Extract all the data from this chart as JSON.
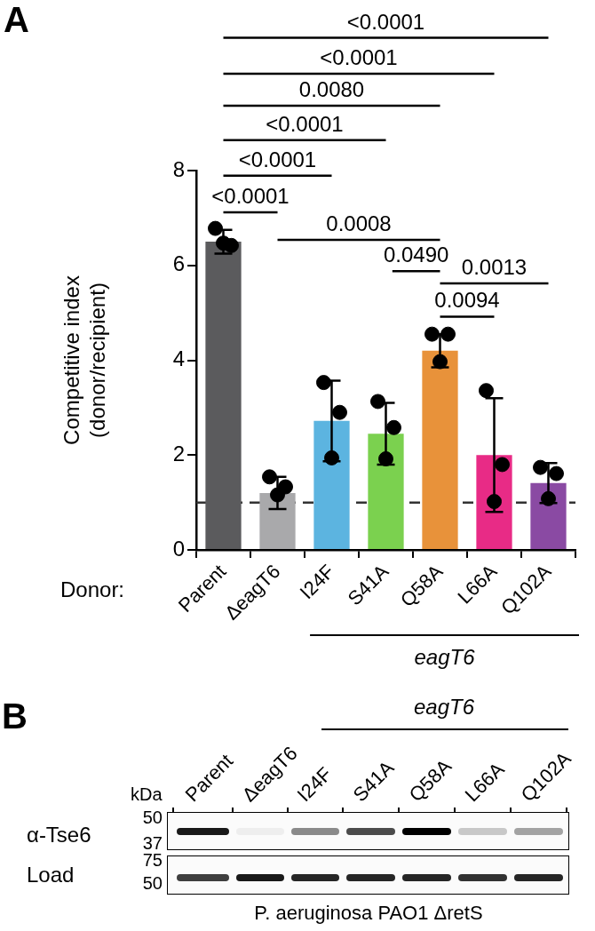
{
  "chart_data": [
    {
      "type": "bar",
      "title": "A",
      "xlabel": "Donor:",
      "ylabel": "Competitive index\n(donor/recipient)",
      "categories": [
        "Parent",
        "ΔeagT6",
        "I24F",
        "S41A",
        "Q58A",
        "L66A",
        "Q102A"
      ],
      "series": [
        {
          "type": "bar",
          "values": [
            6.5,
            1.2,
            2.72,
            2.45,
            4.2,
            2.0,
            1.41
          ],
          "colors": [
            "#5b5b5d",
            "#a9a9ab",
            "#5cb4e0",
            "#7bd14f",
            "#e8923a",
            "#e82b86",
            "#8a4aa3"
          ],
          "errors": [
            0.25,
            0.34,
            0.85,
            0.65,
            0.35,
            1.2,
            0.42
          ]
        },
        {
          "type": "scatter",
          "color": "#000000",
          "marker": "circle",
          "x": [
            "Parent",
            "Parent",
            "Parent",
            "ΔeagT6",
            "ΔeagT6",
            "ΔeagT6",
            "I24F",
            "I24F",
            "I24F",
            "S41A",
            "S41A",
            "S41A",
            "Q58A",
            "Q58A",
            "Q58A",
            "L66A",
            "L66A",
            "L66A",
            "Q102A",
            "Q102A",
            "Q102A"
          ],
          "values": [
            6.78,
            6.42,
            6.47,
            1.54,
            1.33,
            1.16,
            3.53,
            2.9,
            1.94,
            3.13,
            2.58,
            1.92,
            4.55,
            4.55,
            3.97,
            3.36,
            1.8,
            1.02,
            1.74,
            1.61,
            1.08
          ]
        }
      ],
      "ylim": [
        0,
        8
      ],
      "yticks": [
        0,
        2,
        4,
        6,
        8
      ],
      "ref_lines": [
        {
          "axis": "y",
          "value": 1,
          "line_style": "dashed",
          "color": "#333333"
        }
      ],
      "annotations": [
        "<0.0001",
        "<0.0001",
        "0.0080",
        "<0.0001",
        "<0.0001",
        "<0.0001",
        "0.0008",
        "0.0490",
        "0.0013",
        "0.0094",
        "eagT6"
      ]
    },
    {
      "type": "other",
      "title": "B",
      "categories": [
        "Parent",
        "ΔeagT6",
        "I24F",
        "S41A",
        "Q58A",
        "L66A",
        "Q102A"
      ],
      "annotations": [
        "eagT6",
        "kDa",
        "50",
        "37",
        "75",
        "50",
        "α-Tse6",
        "Load",
        "P. aeruginosa PAO1 ΔretS"
      ]
    }
  ]
}
